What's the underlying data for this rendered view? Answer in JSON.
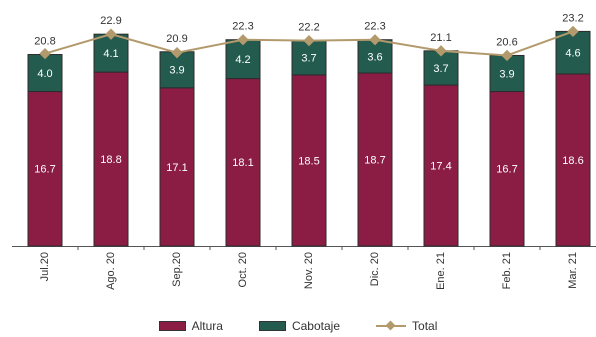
{
  "chart_data": {
    "type": "bar",
    "stacked": true,
    "categories": [
      "Jul.20",
      "Ago. 20",
      "Sep.20",
      "Oct. 20",
      "Nov. 20",
      "Dic. 20",
      "Ene. 21",
      "Feb. 21",
      "Mar. 21"
    ],
    "series": [
      {
        "name": "Altura",
        "values": [
          16.7,
          18.8,
          17.1,
          18.1,
          18.5,
          18.7,
          17.4,
          16.7,
          18.6
        ],
        "color": "#8b1d45"
      },
      {
        "name": "Cabotaje",
        "values": [
          4.0,
          4.1,
          3.9,
          4.2,
          3.7,
          3.6,
          3.7,
          3.9,
          4.6
        ],
        "color": "#235b4e"
      }
    ],
    "line": {
      "name": "Total",
      "values": [
        20.8,
        22.9,
        20.9,
        22.3,
        22.2,
        22.3,
        21.1,
        20.6,
        23.2
      ],
      "color": "#b39a6c"
    },
    "segment_labels": {
      "Altura": [
        "16.7",
        "18.8",
        "17.1",
        "18.1",
        "18.5",
        "18.7",
        "17.4",
        "16.7",
        "18.6"
      ],
      "Cabotaje": [
        "4.0",
        "4.1",
        "3.9",
        "4.2",
        "3.7",
        "3.6",
        "3.7",
        "3.9",
        "4.6"
      ]
    },
    "total_labels": [
      "20.8",
      "22.9",
      "20.9",
      "22.3",
      "22.2",
      "22.3",
      "21.1",
      "20.6",
      "23.2"
    ],
    "ylim": [
      0,
      24
    ],
    "grid": false,
    "legend_position": "bottom"
  }
}
